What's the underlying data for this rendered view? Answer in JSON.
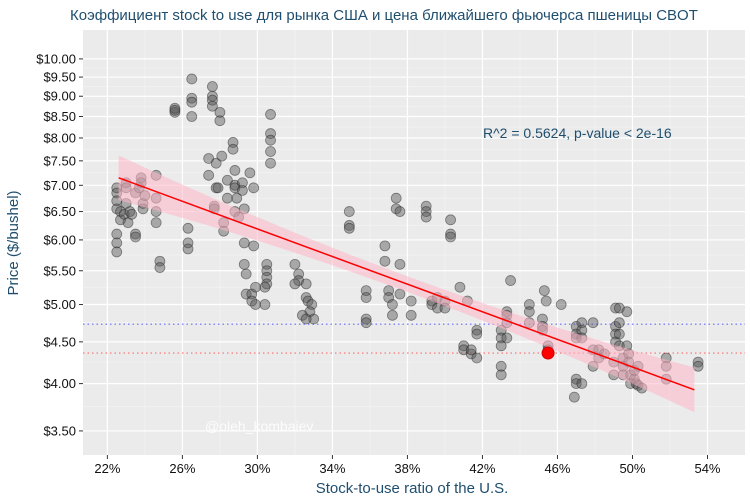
{
  "chart_data": {
    "type": "scatter",
    "title": "Коэффициент stock to use для рынка США и цена ближайшего фьючерса пшеницы CBOT",
    "xlabel": "Stock-to-use ratio of the U.S.",
    "ylabel": "Price ($/bushel)",
    "y_scale": "log",
    "xlim": [
      20.7,
      56.0
    ],
    "ylim": [
      3.27,
      10.85
    ],
    "x_ticks": [
      22,
      26,
      30,
      34,
      38,
      42,
      46,
      50,
      54
    ],
    "x_tick_labels": [
      "22%",
      "26%",
      "30%",
      "34%",
      "38%",
      "42%",
      "46%",
      "50%",
      "54%"
    ],
    "y_ticks": [
      3.5,
      4.0,
      4.5,
      5.0,
      5.5,
      6.0,
      6.5,
      7.0,
      7.5,
      8.0,
      8.5,
      9.0,
      9.5,
      10.0
    ],
    "y_tick_labels": [
      "$3.50",
      "$4.00",
      "$4.50",
      "$5.00",
      "$5.50",
      "$6.00",
      "$6.50",
      "$7.00",
      "$7.50",
      "$8.00",
      "$8.50",
      "$9.00",
      "$9.50",
      "$10.00"
    ],
    "annotation": "R^2 = 0.5624, p-value < 2e-16",
    "watermark": "@oleh_kombaiev",
    "regression": {
      "x": [
        22.6,
        53.3
      ],
      "y": [
        7.15,
        3.93
      ],
      "ci_lower": [
        6.9,
        3.68
      ],
      "ci_upper": [
        7.38,
        4.2
      ],
      "color": "#ff0000",
      "band_color": "#ffb6c8"
    },
    "current_point": {
      "x": 45.5,
      "y": 4.36,
      "color": "#ff0000"
    },
    "hlines": [
      {
        "y": 4.73,
        "color": "#6b6bff",
        "style": "dotted"
      },
      {
        "y": 4.36,
        "color": "#ff6b6b",
        "style": "dotted"
      }
    ],
    "point_color": "#555555",
    "points": [
      [
        22.5,
        6.95
      ],
      [
        22.5,
        6.85
      ],
      [
        22.5,
        6.7
      ],
      [
        22.5,
        6.55
      ],
      [
        22.5,
        6.1
      ],
      [
        22.5,
        5.95
      ],
      [
        22.5,
        5.8
      ],
      [
        22.7,
        6.35
      ],
      [
        22.7,
        6.5
      ],
      [
        22.9,
        6.45
      ],
      [
        23.0,
        7.05
      ],
      [
        23.0,
        6.95
      ],
      [
        23.0,
        6.65
      ],
      [
        23.1,
        6.3
      ],
      [
        23.2,
        6.5
      ],
      [
        23.3,
        6.45
      ],
      [
        23.5,
        6.85
      ],
      [
        23.5,
        6.1
      ],
      [
        23.5,
        6.05
      ],
      [
        23.7,
        6.95
      ],
      [
        23.8,
        7.15
      ],
      [
        23.8,
        7.05
      ],
      [
        23.9,
        6.65
      ],
      [
        23.9,
        6.55
      ],
      [
        24.0,
        6.8
      ],
      [
        24.6,
        7.2
      ],
      [
        24.6,
        6.75
      ],
      [
        24.6,
        6.5
      ],
      [
        24.6,
        6.3
      ],
      [
        24.8,
        5.65
      ],
      [
        24.8,
        5.55
      ],
      [
        25.6,
        8.6
      ],
      [
        25.6,
        8.7
      ],
      [
        25.6,
        8.65
      ],
      [
        26.3,
        6.2
      ],
      [
        26.3,
        5.95
      ],
      [
        26.3,
        5.85
      ],
      [
        26.5,
        9.45
      ],
      [
        26.5,
        8.95
      ],
      [
        26.5,
        8.85
      ],
      [
        26.5,
        8.5
      ],
      [
        27.4,
        7.55
      ],
      [
        27.4,
        7.2
      ],
      [
        27.6,
        9.25
      ],
      [
        27.6,
        9.0
      ],
      [
        27.6,
        8.9
      ],
      [
        27.6,
        8.75
      ],
      [
        27.7,
        6.6
      ],
      [
        27.7,
        6.55
      ],
      [
        27.8,
        7.45
      ],
      [
        27.8,
        6.95
      ],
      [
        27.9,
        6.95
      ],
      [
        28.0,
        8.4
      ],
      [
        28.0,
        8.6
      ],
      [
        28.1,
        7.6
      ],
      [
        28.2,
        6.3
      ],
      [
        28.2,
        6.15
      ],
      [
        28.4,
        7.1
      ],
      [
        28.4,
        6.75
      ],
      [
        28.7,
        7.9
      ],
      [
        28.7,
        7.75
      ],
      [
        28.8,
        7.3
      ],
      [
        28.8,
        7.0
      ],
      [
        28.8,
        6.95
      ],
      [
        28.8,
        6.5
      ],
      [
        28.9,
        6.75
      ],
      [
        29.0,
        6.4
      ],
      [
        29.2,
        7.05
      ],
      [
        29.2,
        6.9
      ],
      [
        29.3,
        6.55
      ],
      [
        29.3,
        5.95
      ],
      [
        29.3,
        5.6
      ],
      [
        29.4,
        5.45
      ],
      [
        29.4,
        5.15
      ],
      [
        29.6,
        7.25
      ],
      [
        29.7,
        5.15
      ],
      [
        29.7,
        5.05
      ],
      [
        29.8,
        6.95
      ],
      [
        29.8,
        5.9
      ],
      [
        29.9,
        5.25
      ],
      [
        29.9,
        5.0
      ],
      [
        30.7,
        8.55
      ],
      [
        30.7,
        8.1
      ],
      [
        30.7,
        7.95
      ],
      [
        30.7,
        7.7
      ],
      [
        30.7,
        7.45
      ],
      [
        30.5,
        5.6
      ],
      [
        30.5,
        5.5
      ],
      [
        30.5,
        5.4
      ],
      [
        30.5,
        5.3
      ],
      [
        30.4,
        5.25
      ],
      [
        30.4,
        5.0
      ],
      [
        32.0,
        5.6
      ],
      [
        32.2,
        5.45
      ],
      [
        32.2,
        5.35
      ],
      [
        32.6,
        5.3
      ],
      [
        32.6,
        5.1
      ],
      [
        32.7,
        5.05
      ],
      [
        32.9,
        5.0
      ],
      [
        32.8,
        4.9
      ],
      [
        33.0,
        4.8
      ],
      [
        32.4,
        4.85
      ],
      [
        32.6,
        4.8
      ],
      [
        32.0,
        5.3
      ],
      [
        34.9,
        6.5
      ],
      [
        34.9,
        6.25
      ],
      [
        34.9,
        6.2
      ],
      [
        35.8,
        5.2
      ],
      [
        35.8,
        5.1
      ],
      [
        35.8,
        4.8
      ],
      [
        35.8,
        4.75
      ],
      [
        36.8,
        5.9
      ],
      [
        36.8,
        5.65
      ],
      [
        37.0,
        5.2
      ],
      [
        37.0,
        5.1
      ],
      [
        37.2,
        4.85
      ],
      [
        37.2,
        5.0
      ],
      [
        37.4,
        6.75
      ],
      [
        37.4,
        6.55
      ],
      [
        37.6,
        6.5
      ],
      [
        37.6,
        5.6
      ],
      [
        37.6,
        5.15
      ],
      [
        38.2,
        5.05
      ],
      [
        38.2,
        4.85
      ],
      [
        39.0,
        6.6
      ],
      [
        39.0,
        6.5
      ],
      [
        39.0,
        6.4
      ],
      [
        39.3,
        5.05
      ],
      [
        39.3,
        5.0
      ],
      [
        39.6,
        5.1
      ],
      [
        39.6,
        4.95
      ],
      [
        40.3,
        6.35
      ],
      [
        40.3,
        6.1
      ],
      [
        40.3,
        6.05
      ],
      [
        40.0,
        5.05
      ],
      [
        40.0,
        4.95
      ],
      [
        40.8,
        5.25
      ],
      [
        41.0,
        4.45
      ],
      [
        41.0,
        4.4
      ],
      [
        41.4,
        4.35
      ],
      [
        41.4,
        4.4
      ],
      [
        41.2,
        5.05
      ],
      [
        41.7,
        4.65
      ],
      [
        41.7,
        4.6
      ],
      [
        41.7,
        4.3
      ],
      [
        43.0,
        4.65
      ],
      [
        43.0,
        4.55
      ],
      [
        43.0,
        4.45
      ],
      [
        43.0,
        4.2
      ],
      [
        43.0,
        4.1
      ],
      [
        43.3,
        4.9
      ],
      [
        43.3,
        4.85
      ],
      [
        43.3,
        4.75
      ],
      [
        43.3,
        4.55
      ],
      [
        44.5,
        5.0
      ],
      [
        44.5,
        4.9
      ],
      [
        44.5,
        4.75
      ],
      [
        45.2,
        4.8
      ],
      [
        45.2,
        4.7
      ],
      [
        45.2,
        4.65
      ],
      [
        45.4,
        5.05
      ],
      [
        45.5,
        4.45
      ],
      [
        45.5,
        4.4
      ],
      [
        45.3,
        5.2
      ],
      [
        43.5,
        5.35
      ],
      [
        46.2,
        5.0
      ],
      [
        47.0,
        4.7
      ],
      [
        47.0,
        4.6
      ],
      [
        47.0,
        4.55
      ],
      [
        47.3,
        4.75
      ],
      [
        47.3,
        4.65
      ],
      [
        47.3,
        4.55
      ],
      [
        47.0,
        4.05
      ],
      [
        47.0,
        4.0
      ],
      [
        46.9,
        3.85
      ],
      [
        47.3,
        4.0
      ],
      [
        47.9,
        4.75
      ],
      [
        47.9,
        4.4
      ],
      [
        47.9,
        4.2
      ],
      [
        48.2,
        4.4
      ],
      [
        48.2,
        4.3
      ],
      [
        48.5,
        4.35
      ],
      [
        49.1,
        4.95
      ],
      [
        49.1,
        4.7
      ],
      [
        49.1,
        4.6
      ],
      [
        49.1,
        4.5
      ],
      [
        49.3,
        4.95
      ],
      [
        49.3,
        4.75
      ],
      [
        49.3,
        4.6
      ],
      [
        49.3,
        4.45
      ],
      [
        49.0,
        4.25
      ],
      [
        49.0,
        4.1
      ],
      [
        49.5,
        4.3
      ],
      [
        49.5,
        4.2
      ],
      [
        49.5,
        4.1
      ],
      [
        49.7,
        4.9
      ],
      [
        49.7,
        4.45
      ],
      [
        49.8,
        4.35
      ],
      [
        49.8,
        4.25
      ],
      [
        49.9,
        4.1
      ],
      [
        49.9,
        4.0
      ],
      [
        50.1,
        4.05
      ],
      [
        50.1,
        4.15
      ],
      [
        50.2,
        4.0
      ],
      [
        50.3,
        3.98
      ],
      [
        50.5,
        3.95
      ],
      [
        50.3,
        4.2
      ],
      [
        51.8,
        4.3
      ],
      [
        51.8,
        4.2
      ],
      [
        51.8,
        4.05
      ],
      [
        53.5,
        4.25
      ],
      [
        53.5,
        4.2
      ]
    ]
  }
}
